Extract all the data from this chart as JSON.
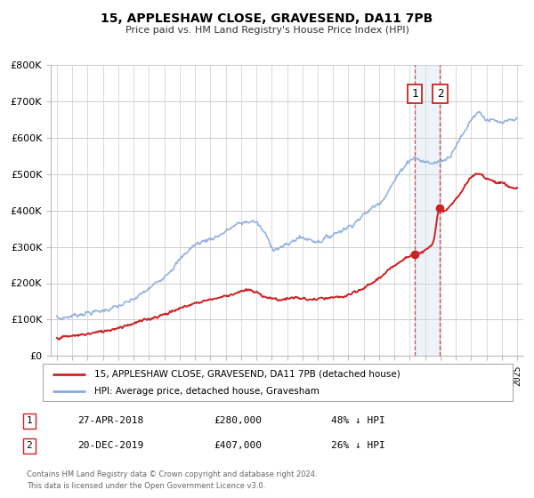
{
  "title": "15, APPLESHAW CLOSE, GRAVESEND, DA11 7PB",
  "subtitle": "Price paid vs. HM Land Registry's House Price Index (HPI)",
  "ylim": [
    0,
    800000
  ],
  "yticks": [
    0,
    100000,
    200000,
    300000,
    400000,
    500000,
    600000,
    700000,
    800000
  ],
  "xlim_start": 1994.6,
  "xlim_end": 2025.4,
  "transaction1_x": 2018.32,
  "transaction1_y": 280000,
  "transaction2_x": 2019.97,
  "transaction2_y": 407000,
  "line_property_color": "#cc2222",
  "line_hpi_color": "#88aadd",
  "legend_property": "15, APPLESHAW CLOSE, GRAVESEND, DA11 7PB (detached house)",
  "legend_hpi": "HPI: Average price, detached house, Gravesham",
  "table_row1": [
    "1",
    "27-APR-2018",
    "£280,000",
    "48% ↓ HPI"
  ],
  "table_row2": [
    "2",
    "20-DEC-2019",
    "£407,000",
    "26% ↓ HPI"
  ],
  "footnote1": "Contains HM Land Registry data © Crown copyright and database right 2024.",
  "footnote2": "This data is licensed under the Open Government Licence v3.0.",
  "background_color": "#ffffff",
  "grid_color": "#cccccc",
  "shaded_region_color": "#ccddf0"
}
